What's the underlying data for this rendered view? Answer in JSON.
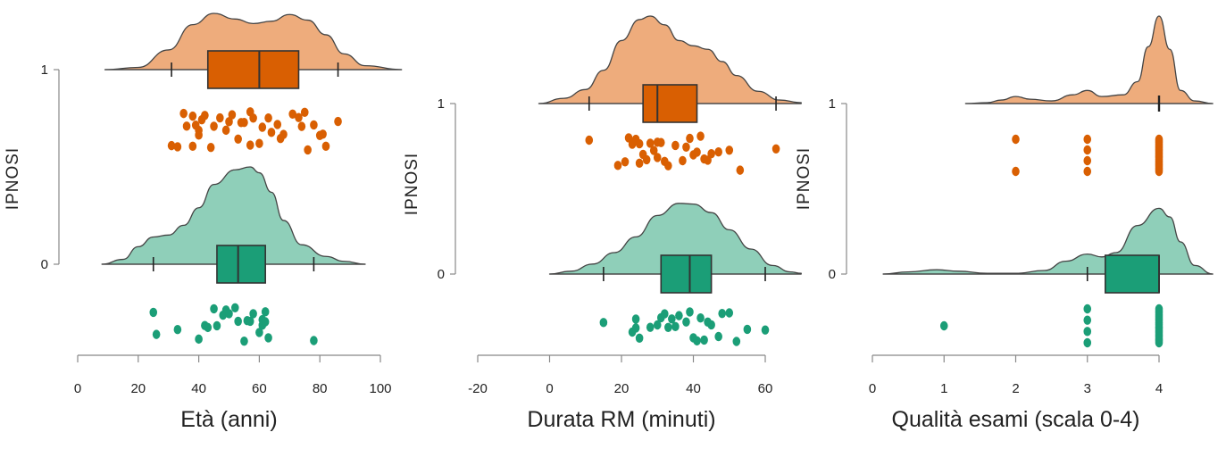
{
  "colors": {
    "group1_density": "#eeac7c",
    "group1_box": "#d95f02",
    "group0_density": "#8fcfb9",
    "group0_box": "#1b9e77",
    "outline": "#444444",
    "axis": "#888888"
  },
  "chart_data": [
    {
      "type": "raincloud",
      "xlabel": "Età (anni)",
      "ylabel": "IPNOSI",
      "xticks": [
        0,
        20,
        40,
        60,
        80,
        100
      ],
      "xlim": [
        0,
        107
      ],
      "groups": [
        {
          "name": "1",
          "density": [
            [
              9,
              0
            ],
            [
              20,
              0.04
            ],
            [
              30,
              0.35
            ],
            [
              38,
              0.8
            ],
            [
              45,
              1.0
            ],
            [
              52,
              0.9
            ],
            [
              58,
              0.82
            ],
            [
              64,
              0.86
            ],
            [
              70,
              0.98
            ],
            [
              76,
              0.88
            ],
            [
              82,
              0.62
            ],
            [
              88,
              0.28
            ],
            [
              95,
              0.07
            ],
            [
              107,
              0
            ]
          ],
          "box": {
            "min": 31,
            "q1": 43,
            "median": 60,
            "q3": 73,
            "max": 86
          },
          "points": [
            31,
            33,
            35,
            36,
            38,
            38,
            39,
            40,
            40,
            41,
            42,
            44,
            45,
            47,
            49,
            50,
            51,
            53,
            54,
            55,
            57,
            57,
            58,
            60,
            61,
            63,
            64,
            66,
            67,
            68,
            71,
            73,
            74,
            75,
            76,
            78,
            80,
            81,
            82,
            86
          ]
        },
        {
          "name": "0",
          "density": [
            [
              8,
              0
            ],
            [
              15,
              0.05
            ],
            [
              20,
              0.18
            ],
            [
              25,
              0.28
            ],
            [
              30,
              0.3
            ],
            [
              35,
              0.4
            ],
            [
              40,
              0.58
            ],
            [
              45,
              0.82
            ],
            [
              52,
              0.97
            ],
            [
              57,
              1.0
            ],
            [
              60,
              0.94
            ],
            [
              64,
              0.74
            ],
            [
              68,
              0.45
            ],
            [
              74,
              0.2
            ],
            [
              82,
              0.08
            ],
            [
              88,
              0.03
            ],
            [
              95,
              0
            ]
          ],
          "box": {
            "min": 25,
            "q1": 46,
            "median": 53,
            "q3": 62,
            "max": 78
          },
          "points": [
            25,
            26,
            33,
            40,
            42,
            43,
            45,
            46,
            48,
            49,
            50,
            52,
            53,
            55,
            56,
            57,
            58,
            60,
            61,
            61,
            62,
            62,
            63,
            78
          ]
        }
      ]
    },
    {
      "type": "raincloud",
      "xlabel": "Durata RM (minuti)",
      "ylabel": "IPNOSI",
      "xticks": [
        -20,
        0,
        20,
        40,
        60
      ],
      "xlim": [
        -23,
        70
      ],
      "groups": [
        {
          "name": "1",
          "density": [
            [
              -3,
              0
            ],
            [
              4,
              0.06
            ],
            [
              10,
              0.16
            ],
            [
              15,
              0.38
            ],
            [
              20,
              0.72
            ],
            [
              25,
              0.96
            ],
            [
              28,
              1.0
            ],
            [
              32,
              0.9
            ],
            [
              36,
              0.72
            ],
            [
              40,
              0.66
            ],
            [
              44,
              0.62
            ],
            [
              48,
              0.48
            ],
            [
              52,
              0.32
            ],
            [
              58,
              0.14
            ],
            [
              64,
              0.04
            ],
            [
              70,
              0.01
            ]
          ],
          "box": {
            "min": 11,
            "q1": 26,
            "median": 30,
            "q3": 41,
            "max": 63
          },
          "points": [
            11,
            19,
            21,
            22,
            23,
            24,
            25,
            25,
            26,
            27,
            28,
            29,
            30,
            30,
            31,
            32,
            33,
            35,
            37,
            38,
            39,
            40,
            41,
            42,
            43,
            44,
            45,
            47,
            50,
            53,
            63
          ]
        },
        {
          "name": "0",
          "density": [
            [
              0,
              0
            ],
            [
              6,
              0.04
            ],
            [
              12,
              0.14
            ],
            [
              18,
              0.3
            ],
            [
              24,
              0.52
            ],
            [
              30,
              0.82
            ],
            [
              36,
              0.99
            ],
            [
              40,
              0.98
            ],
            [
              45,
              0.86
            ],
            [
              50,
              0.62
            ],
            [
              56,
              0.35
            ],
            [
              62,
              0.12
            ],
            [
              67,
              0.03
            ],
            [
              70,
              0.01
            ]
          ],
          "box": {
            "min": 15,
            "q1": 31,
            "median": 39,
            "q3": 45,
            "max": 60
          },
          "points": [
            15,
            23,
            24,
            24,
            25,
            28,
            30,
            31,
            32,
            33,
            34,
            35,
            36,
            38,
            39,
            40,
            41,
            42,
            43,
            44,
            45,
            47,
            48,
            50,
            52,
            55,
            60
          ]
        }
      ]
    },
    {
      "type": "raincloud",
      "xlabel": "Qualità esami (scala 0-4)",
      "ylabel": "IPNOSI",
      "xticks": [
        0,
        1,
        2,
        3,
        4
      ],
      "xlim": [
        -0.05,
        4.8
      ],
      "groups": [
        {
          "name": "1",
          "density": [
            [
              1.3,
              0
            ],
            [
              1.6,
              0.01
            ],
            [
              1.8,
              0.04
            ],
            [
              2.0,
              0.08
            ],
            [
              2.2,
              0.05
            ],
            [
              2.5,
              0.03
            ],
            [
              2.8,
              0.1
            ],
            [
              3.0,
              0.15
            ],
            [
              3.2,
              0.08
            ],
            [
              3.5,
              0.1
            ],
            [
              3.7,
              0.25
            ],
            [
              3.85,
              0.65
            ],
            [
              4.0,
              1.0
            ],
            [
              4.15,
              0.62
            ],
            [
              4.3,
              0.15
            ],
            [
              4.5,
              0.03
            ],
            [
              4.75,
              0
            ]
          ],
          "box": {
            "min": 4,
            "q1": 4,
            "median": 4,
            "q3": 4,
            "max": 4
          },
          "points": [
            2,
            2,
            3,
            3,
            3,
            3,
            4,
            4,
            4,
            4,
            4,
            4,
            4,
            4,
            4,
            4,
            4,
            4,
            4,
            4,
            4,
            4,
            4,
            4,
            4,
            4
          ]
        },
        {
          "name": "0",
          "density": [
            [
              0.15,
              0
            ],
            [
              0.5,
              0.03
            ],
            [
              0.9,
              0.06
            ],
            [
              1.2,
              0.04
            ],
            [
              1.6,
              0.01
            ],
            [
              2.0,
              0.01
            ],
            [
              2.4,
              0.05
            ],
            [
              2.7,
              0.18
            ],
            [
              3.0,
              0.28
            ],
            [
              3.2,
              0.24
            ],
            [
              3.4,
              0.3
            ],
            [
              3.7,
              0.68
            ],
            [
              4.0,
              0.92
            ],
            [
              4.15,
              0.8
            ],
            [
              4.3,
              0.45
            ],
            [
              4.5,
              0.12
            ],
            [
              4.75,
              0
            ]
          ],
          "box": {
            "min": 3,
            "q1": 3.25,
            "median": 4,
            "q3": 4,
            "max": 4
          },
          "points": [
            1,
            3,
            3,
            3,
            3,
            4,
            4,
            4,
            4,
            4,
            4,
            4,
            4,
            4,
            4,
            4,
            4,
            4,
            4,
            4,
            4,
            4,
            4
          ]
        }
      ]
    }
  ]
}
